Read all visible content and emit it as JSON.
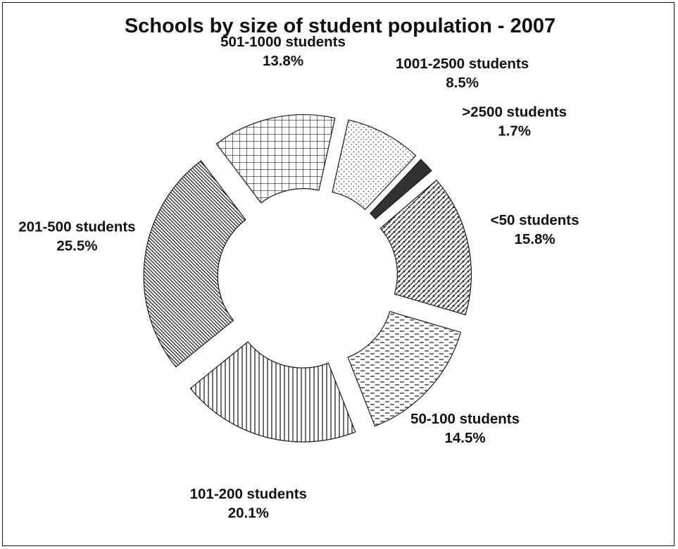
{
  "chart_data": {
    "type": "pie",
    "variant": "exploded donut",
    "title": "Schools by size of student population - 2007",
    "slices": [
      {
        "label": "201-500 students",
        "percent_label": "25.5%",
        "value": 25.5,
        "pattern": "diagonal-dense"
      },
      {
        "label": "501-1000 students",
        "percent_label": "13.8%",
        "value": 13.8,
        "pattern": "grid"
      },
      {
        "label": "1001-2500 students",
        "percent_label": "8.5%",
        "value": 8.5,
        "pattern": "dots"
      },
      {
        "label": ">2500 students",
        "percent_label": "1.7%",
        "value": 1.7,
        "pattern": "solid-dark"
      },
      {
        "label": "<50 students",
        "percent_label": "15.8%",
        "value": 15.8,
        "pattern": "diagonal"
      },
      {
        "label": "50-100 students",
        "percent_label": "14.5%",
        "value": 14.5,
        "pattern": "dashes"
      },
      {
        "label": "101-200 students",
        "percent_label": "20.1%",
        "value": 20.1,
        "pattern": "vertical"
      }
    ]
  }
}
